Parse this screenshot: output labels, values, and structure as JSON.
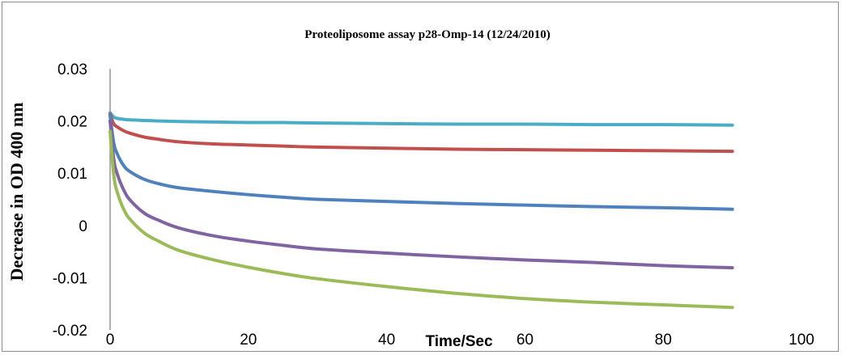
{
  "chart_data": {
    "type": "line",
    "title": "Proteoliposome assay p28-Omp-14  (12/24/2010)",
    "xlabel": "Time/Sec",
    "ylabel": "Decrease in OD 400 nm",
    "xlim": [
      0,
      100
    ],
    "ylim": [
      -0.02,
      0.03
    ],
    "x_ticks": [
      "0",
      "20",
      "40",
      "60",
      "80",
      "100"
    ],
    "y_ticks": [
      "-0.02",
      "-0.01",
      "0",
      "0.01",
      "0.02",
      "0.03"
    ],
    "grid": false,
    "legend": "none",
    "x": [
      0,
      0.5,
      1,
      2,
      3,
      5,
      7,
      10,
      15,
      20,
      25,
      30,
      40,
      50,
      60,
      70,
      80,
      90
    ],
    "series": [
      {
        "color": "#4bacc6",
        "values": [
          0.0216,
          0.0208,
          0.0205,
          0.0203,
          0.0202,
          0.0201,
          0.02,
          0.0199,
          0.0198,
          0.0197,
          0.0197,
          0.0196,
          0.0195,
          0.0194,
          0.0194,
          0.0193,
          0.0193,
          0.0192
        ]
      },
      {
        "color": "#c0504d",
        "values": [
          0.0213,
          0.0195,
          0.0189,
          0.0181,
          0.0176,
          0.0169,
          0.0165,
          0.016,
          0.0156,
          0.0154,
          0.0152,
          0.015,
          0.0148,
          0.0146,
          0.0145,
          0.0144,
          0.0143,
          0.0142
        ]
      },
      {
        "color": "#4f81bd",
        "values": [
          0.021,
          0.016,
          0.0138,
          0.0114,
          0.0102,
          0.0088,
          0.008,
          0.0072,
          0.0065,
          0.0059,
          0.0054,
          0.005,
          0.0046,
          0.0042,
          0.0039,
          0.0036,
          0.0034,
          0.0031
        ]
      },
      {
        "color": "#8064a2",
        "values": [
          0.02,
          0.013,
          0.01,
          0.0067,
          0.0047,
          0.0023,
          0.001,
          -0.0005,
          -0.002,
          -0.003,
          -0.0038,
          -0.0045,
          -0.0053,
          -0.006,
          -0.0066,
          -0.0071,
          -0.0077,
          -0.0081
        ]
      },
      {
        "color": "#9bbb59",
        "values": [
          0.018,
          0.01,
          0.0065,
          0.003,
          0.001,
          -0.0015,
          -0.003,
          -0.0048,
          -0.0066,
          -0.008,
          -0.0092,
          -0.0102,
          -0.0117,
          -0.013,
          -0.014,
          -0.0147,
          -0.0152,
          -0.0157
        ]
      }
    ]
  }
}
